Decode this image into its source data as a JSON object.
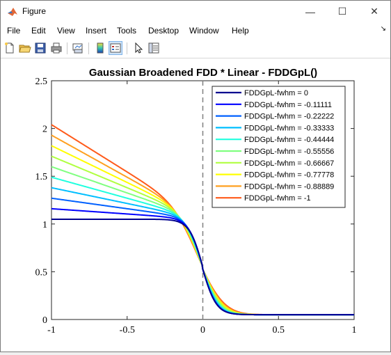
{
  "window": {
    "title": "Figure",
    "minimize": "—",
    "maximize": "☐",
    "close": "✕"
  },
  "menu": {
    "items": [
      "File",
      "Edit",
      "View",
      "Insert",
      "Tools",
      "Desktop",
      "Window",
      "Help"
    ],
    "arrow": "↘"
  },
  "toolbar": {
    "icons": [
      "new-figure-icon",
      "open-file-icon",
      "save-icon",
      "print-icon",
      "link-plot-icon",
      "insert-colorbar-icon",
      "insert-legend-icon",
      "pointer-icon",
      "property-inspector-icon"
    ]
  },
  "chart_data": {
    "type": "line",
    "title": "Gaussian Broadened FDD * Linear - FDDGpL()",
    "xlabel": "",
    "ylabel": "",
    "xlim": [
      -1,
      1
    ],
    "ylim": [
      0,
      2.5
    ],
    "xticks": [
      -1,
      -0.5,
      0,
      0.5,
      1
    ],
    "xtick_labels": [
      "-1",
      "-0.5",
      "0",
      "0.5",
      "1"
    ],
    "yticks": [
      0,
      0.5,
      1,
      1.5,
      2,
      2.5
    ],
    "ytick_labels": [
      "0",
      "0.5",
      "1",
      "1.5",
      "2",
      "2.5"
    ],
    "legend_position": "top-right",
    "vertical_line": {
      "x": 0,
      "style": "dashed",
      "color": "#808080"
    },
    "grid": false,
    "series": [
      {
        "name": "FDDGpL-fwhm = 0",
        "color": "#00008f",
        "values_at": {
          "-1": 1.05,
          "-0.2": 1.04,
          "0": 0.55,
          "1": 0.05
        }
      },
      {
        "name": "FDDGpL-fwhm = -0.11111",
        "color": "#0000ff",
        "values_at": {
          "-1": 1.16,
          "-0.2": 1.04,
          "0": 0.55,
          "1": 0.05
        }
      },
      {
        "name": "FDDGpL-fwhm = -0.22222",
        "color": "#0060ff",
        "values_at": {
          "-1": 1.27,
          "-0.2": 1.05,
          "0": 0.55,
          "1": 0.05
        }
      },
      {
        "name": "FDDGpL-fwhm = -0.33333",
        "color": "#00bfff",
        "values_at": {
          "-1": 1.38,
          "-0.2": 1.06,
          "0": 0.55,
          "1": 0.05
        }
      },
      {
        "name": "FDDGpL-fwhm = -0.44444",
        "color": "#20ffdf",
        "values_at": {
          "-1": 1.49,
          "-0.2": 1.07,
          "0": 0.55,
          "1": 0.05
        }
      },
      {
        "name": "FDDGpL-fwhm = -0.55556",
        "color": "#80ff80",
        "values_at": {
          "-1": 1.6,
          "-0.2": 1.08,
          "0": 0.55,
          "1": 0.05
        }
      },
      {
        "name": "FDDGpL-fwhm = -0.66667",
        "color": "#b0ff40",
        "values_at": {
          "-1": 1.71,
          "-0.2": 1.1,
          "0": 0.55,
          "1": 0.05
        }
      },
      {
        "name": "FDDGpL-fwhm = -0.77778",
        "color": "#ffff00",
        "values_at": {
          "-1": 1.82,
          "-0.2": 1.12,
          "0": 0.55,
          "1": 0.05
        }
      },
      {
        "name": "FDDGpL-fwhm = -0.88889",
        "color": "#ffa020",
        "values_at": {
          "-1": 1.93,
          "-0.2": 1.14,
          "0": 0.55,
          "1": 0.05
        }
      },
      {
        "name": "FDDGpL-fwhm = -1",
        "color": "#ff5a1a",
        "values_at": {
          "-1": 2.04,
          "-0.2": 1.16,
          "0": 0.55,
          "1": 0.05
        }
      }
    ]
  }
}
